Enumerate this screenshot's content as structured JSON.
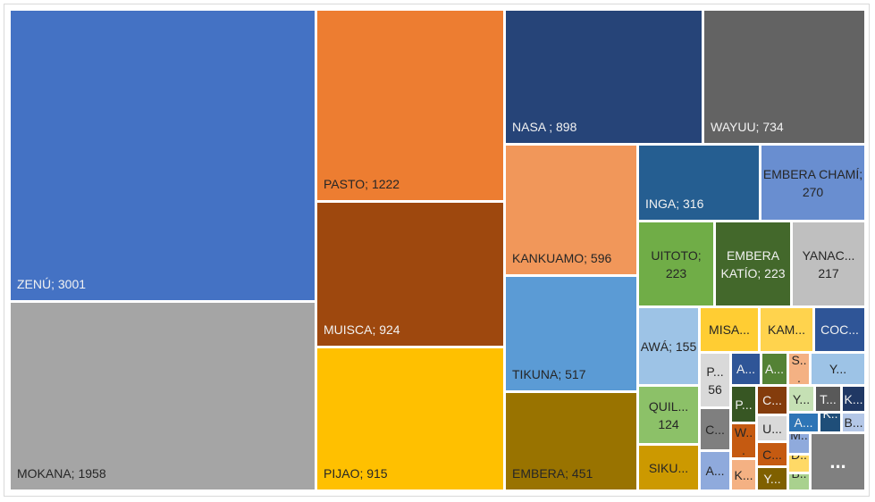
{
  "chart_data": {
    "type": "treemap",
    "labels": [
      "ZENÚ; 3001",
      "MOKANA; 1958",
      "PASTO; 1222",
      "MUISCA; 924",
      "PIJAO; 915",
      "NASA ; 898",
      "WAYUU; 734",
      "KANKUAMO; 596",
      "TIKUNA; 517",
      "EMBERA; 451",
      "INGA; 316",
      "EMBERA CHAMÍ; 270",
      "UITOTO; 223",
      "EMBERA KATÍO; 223",
      "YANAC... 217",
      "AWÁ; 155",
      "QUIL... 124",
      "SIKU...",
      "MISA...",
      "KAM...",
      "COC...",
      "P... 56",
      "A...",
      "A...",
      "S...",
      "Y...",
      "C...",
      "A...",
      "P...",
      "W...",
      "K...",
      "C...",
      "U...",
      "C...",
      "Y...",
      "Y...",
      "T...",
      "K...",
      "A...",
      "K...",
      "B...",
      "M...",
      "D...",
      "B...",
      "..."
    ],
    "values": [
      3001,
      1958,
      1222,
      924,
      915,
      898,
      734,
      596,
      517,
      451,
      316,
      270,
      223,
      223,
      217,
      155,
      124,
      87,
      84,
      76,
      72,
      56,
      29,
      25,
      20,
      55,
      39,
      37,
      28,
      26,
      23,
      26,
      24,
      22,
      21,
      20,
      20,
      18,
      17,
      12,
      13,
      13,
      11,
      10,
      100
    ],
    "colors": [
      "#4472c4",
      "#a5a5a5",
      "#ed7d31",
      "#9e480e",
      "#ffc000",
      "#264478",
      "#636363",
      "#f1975a",
      "#5b9bd5",
      "#997300",
      "#255e91",
      "#698ed0",
      "#70ad47",
      "#43682b",
      "#bfbfbf",
      "#9dc3e6",
      "#8cc168",
      "#cc9900",
      "#ffcd33",
      "#ffd34d",
      "#2f5597",
      "#d9d9d9",
      "#2f5597",
      "#548235",
      "#f4b183",
      "#9dc3e6",
      "#7f7f7f",
      "#8faadc",
      "#375623",
      "#c55a11",
      "#f4b183",
      "#843c0c",
      "#d9d9d9",
      "#c55a11",
      "#7f6000",
      "#c5e0b4",
      "#595959",
      "#203864",
      "#2e75b6",
      "#1f4e79",
      "#b4c7e7",
      "#8faadc",
      "#ffd966",
      "#a9d18e",
      "#808080"
    ]
  }
}
